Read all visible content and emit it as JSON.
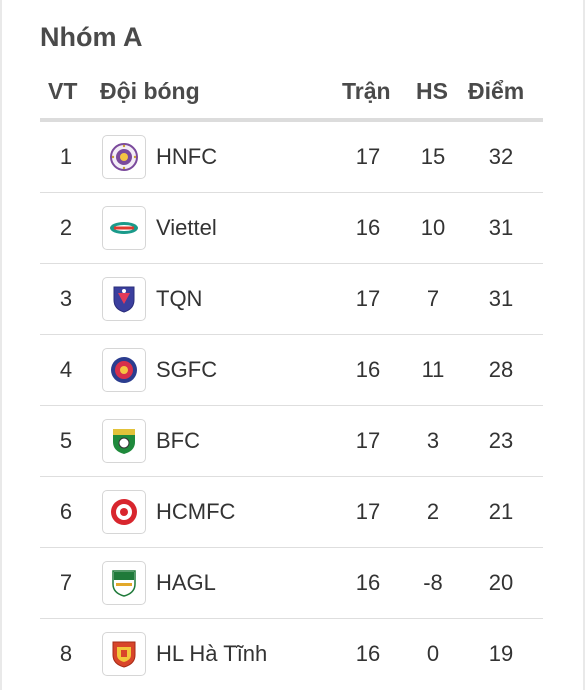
{
  "group_title": "Nhóm A",
  "columns": {
    "pos": "VT",
    "team": "Đội bóng",
    "played": "Trận",
    "gd": "HS",
    "pts": "Điểm"
  },
  "teams": [
    {
      "pos": "1",
      "name": "HNFC",
      "played": "17",
      "gd": "15",
      "pts": "32",
      "logo": "hnfc-logo-icon"
    },
    {
      "pos": "2",
      "name": "Viettel",
      "played": "16",
      "gd": "10",
      "pts": "31",
      "logo": "viettel-logo-icon"
    },
    {
      "pos": "3",
      "name": "TQN",
      "played": "17",
      "gd": "7",
      "pts": "31",
      "logo": "tqn-logo-icon"
    },
    {
      "pos": "4",
      "name": "SGFC",
      "played": "16",
      "gd": "11",
      "pts": "28",
      "logo": "sgfc-logo-icon"
    },
    {
      "pos": "5",
      "name": "BFC",
      "played": "17",
      "gd": "3",
      "pts": "23",
      "logo": "bfc-logo-icon"
    },
    {
      "pos": "6",
      "name": "HCMFC",
      "played": "17",
      "gd": "2",
      "pts": "21",
      "logo": "hcmfc-logo-icon"
    },
    {
      "pos": "7",
      "name": "HAGL",
      "played": "16",
      "gd": "-8",
      "pts": "20",
      "logo": "hagl-logo-icon"
    },
    {
      "pos": "8",
      "name": "HL Hà Tĩnh",
      "played": "16",
      "gd": "0",
      "pts": "19",
      "logo": "hl-ha-tinh-logo-icon"
    }
  ]
}
